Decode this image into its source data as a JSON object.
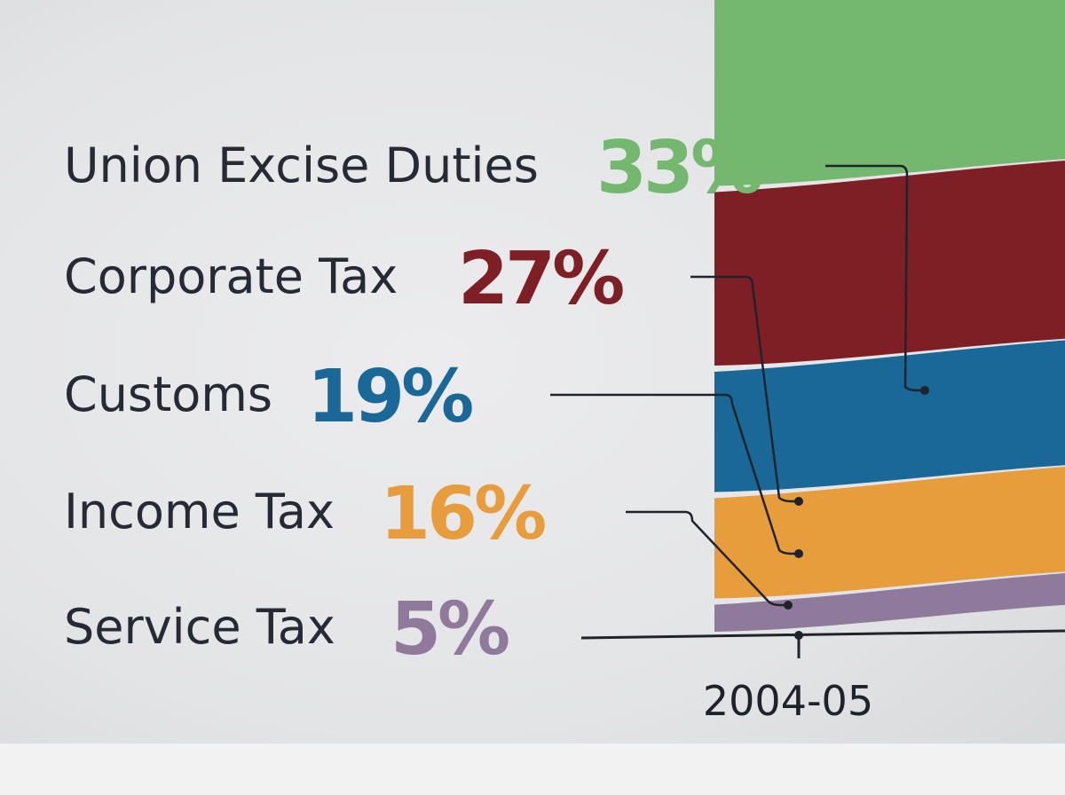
{
  "chart_data": {
    "type": "area",
    "categories": [
      "Union Excise Duties",
      "Corporate Tax",
      "Customs",
      "Income Tax",
      "Service Tax"
    ],
    "values": [
      33,
      27,
      19,
      16,
      5
    ],
    "value_labels": [
      "33%",
      "27%",
      "19%",
      "16%",
      "5%"
    ],
    "x": [
      "2004-05"
    ],
    "title": "",
    "xlabel": "",
    "ylabel": "",
    "grid": false,
    "legend": "left",
    "colors": [
      "#74b870",
      "#7e1f26",
      "#1a6898",
      "#e79d3c",
      "#8f7a9c"
    ]
  }
}
